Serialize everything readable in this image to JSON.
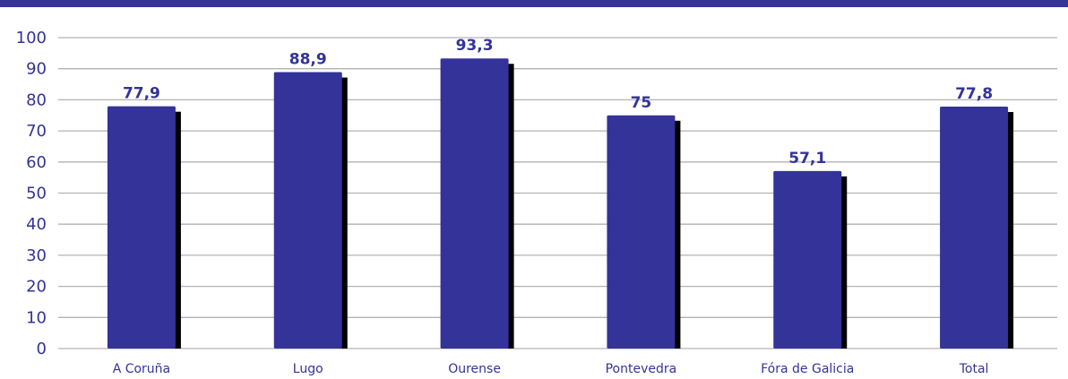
{
  "colors": {
    "bar": "#333399",
    "shadow": "#000000",
    "grid": "#b3b3b3",
    "text": "#333399",
    "band": "#333399"
  },
  "chart_data": {
    "type": "bar",
    "categories": [
      "A Coruña",
      "Lugo",
      "Ourense",
      "Pontevedra",
      "Fóra de Galicia",
      "Total"
    ],
    "values": [
      77.9,
      88.9,
      93.3,
      75,
      57.1,
      77.8
    ],
    "value_labels": [
      "77,9",
      "88,9",
      "93,3",
      "75",
      "57,1",
      "77,8"
    ],
    "y_ticks": [
      "0",
      "10",
      "20",
      "30",
      "40",
      "50",
      "60",
      "70",
      "80",
      "90",
      "100"
    ],
    "ylim": [
      0,
      100
    ],
    "grid": true,
    "legend": "none"
  }
}
